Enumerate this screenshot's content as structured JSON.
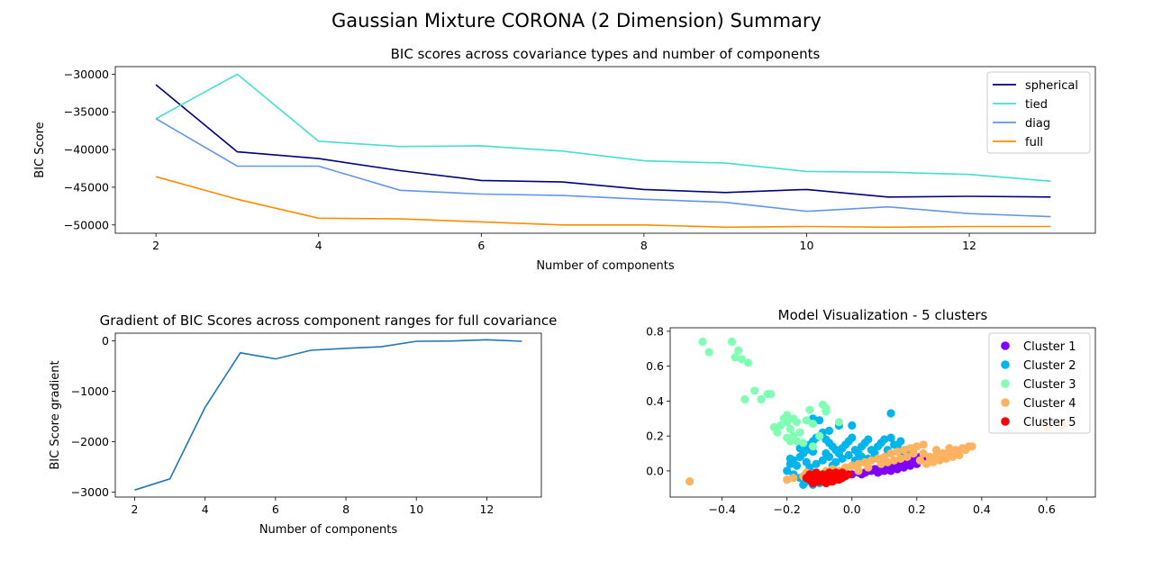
{
  "suptitle": "Gaussian Mixture CORONA (2 Dimension) Summary",
  "chart_data": [
    {
      "type": "line",
      "title": "BIC scores across covariance types and number of components",
      "xlabel": "Number of components",
      "ylabel": "BIC Score",
      "x": [
        2,
        3,
        4,
        5,
        6,
        7,
        8,
        9,
        10,
        11,
        12,
        13
      ],
      "xlim": [
        1.5,
        13.55
      ],
      "ylim": [
        -51100,
        -29000
      ],
      "xticks": [
        2,
        4,
        6,
        8,
        10,
        12
      ],
      "yticks": [
        -50000,
        -45000,
        -40000,
        -35000,
        -30000
      ],
      "legend_position": "upper right",
      "series": [
        {
          "name": "spherical",
          "color": "#000080",
          "values": [
            -31400,
            -40300,
            -41200,
            -42800,
            -44100,
            -44300,
            -45300,
            -45700,
            -45300,
            -46300,
            -46200,
            -46300
          ]
        },
        {
          "name": "tied",
          "color": "#40e0d0",
          "values": [
            -35900,
            -30000,
            -38900,
            -39600,
            -39500,
            -40200,
            -41500,
            -41800,
            -42900,
            -43000,
            -43300,
            -44200
          ]
        },
        {
          "name": "diag",
          "color": "#6495ed",
          "values": [
            -35900,
            -42200,
            -42200,
            -45400,
            -45900,
            -46100,
            -46600,
            -47000,
            -48200,
            -47600,
            -48500,
            -48900
          ]
        },
        {
          "name": "full",
          "color": "#ff8c00",
          "values": [
            -43600,
            -46600,
            -49100,
            -49200,
            -49600,
            -50000,
            -50000,
            -50300,
            -50200,
            -50300,
            -50200,
            -50200
          ]
        }
      ]
    },
    {
      "type": "line",
      "title": "Gradient of BIC Scores across component ranges for full covariance",
      "xlabel": "Number of components",
      "ylabel": "BIC Score gradient",
      "x": [
        2,
        3,
        4,
        5,
        6,
        7,
        8,
        9,
        10,
        11,
        12,
        13
      ],
      "xlim": [
        1.45,
        13.55
      ],
      "ylim": [
        -3100,
        150
      ],
      "xticks": [
        2,
        4,
        6,
        8,
        10,
        12
      ],
      "yticks": [
        -3000,
        -2000,
        -1000,
        0
      ],
      "series": [
        {
          "color": "#1f77b4",
          "values": [
            -2960,
            -2740,
            -1320,
            -240,
            -360,
            -190,
            -150,
            -120,
            -10,
            -5,
            20,
            -10
          ]
        }
      ]
    },
    {
      "type": "scatter",
      "title": "Model Visualization - 5 clusters",
      "xlim": [
        -0.56,
        0.75
      ],
      "ylim": [
        -0.15,
        0.82
      ],
      "xticks": [
        -0.4,
        -0.2,
        0.0,
        0.2,
        0.4,
        0.6
      ],
      "xtick_labels": [
        "−0.4",
        "−0.2",
        "0.0",
        "0.2",
        "0.4",
        "0.6"
      ],
      "yticks": [
        0.0,
        0.2,
        0.4,
        0.6,
        0.8
      ],
      "ytick_labels": [
        "0.0",
        "0.2",
        "0.4",
        "0.6",
        "0.8"
      ],
      "legend_position": "upper right",
      "series": [
        {
          "name": "Cluster 1",
          "color": "#8000ff",
          "points": [
            [
              -0.02,
              -0.02
            ],
            [
              0.0,
              -0.02
            ],
            [
              0.02,
              -0.01
            ],
            [
              0.04,
              -0.01
            ],
            [
              0.05,
              0.0
            ],
            [
              0.06,
              0.0
            ],
            [
              0.07,
              0.01
            ],
            [
              0.08,
              0.01
            ],
            [
              0.09,
              0.02
            ],
            [
              0.1,
              0.02
            ],
            [
              0.11,
              0.03
            ],
            [
              0.12,
              0.03
            ],
            [
              0.13,
              0.04
            ],
            [
              0.14,
              0.04
            ],
            [
              0.15,
              0.05
            ],
            [
              0.16,
              0.05
            ],
            [
              0.17,
              0.06
            ],
            [
              0.18,
              0.06
            ],
            [
              0.19,
              0.07
            ],
            [
              0.2,
              0.07
            ],
            [
              0.21,
              0.08
            ],
            [
              0.22,
              0.08
            ],
            [
              0.09,
              0.0
            ],
            [
              0.11,
              0.01
            ],
            [
              0.13,
              0.02
            ],
            [
              0.15,
              0.03
            ],
            [
              0.17,
              0.04
            ],
            [
              0.19,
              0.05
            ],
            [
              0.12,
              0.0
            ],
            [
              0.14,
              0.01
            ],
            [
              0.16,
              0.02
            ],
            [
              0.18,
              0.03
            ],
            [
              0.2,
              0.04
            ],
            [
              0.08,
              -0.01
            ],
            [
              0.1,
              0.0
            ],
            [
              0.13,
              0.05
            ],
            [
              0.17,
              0.07
            ],
            [
              0.03,
              -0.02
            ]
          ]
        },
        {
          "name": "Cluster 2",
          "color": "#00b4ec",
          "points": [
            [
              -0.19,
              0.07
            ],
            [
              -0.18,
              0.06
            ],
            [
              -0.16,
              0.08
            ],
            [
              -0.15,
              0.1
            ],
            [
              -0.14,
              0.12
            ],
            [
              -0.13,
              0.15
            ],
            [
              -0.12,
              0.17
            ],
            [
              -0.11,
              0.19
            ],
            [
              -0.1,
              0.2
            ],
            [
              -0.09,
              0.22
            ],
            [
              -0.08,
              0.18
            ],
            [
              -0.07,
              0.16
            ],
            [
              -0.06,
              0.14
            ],
            [
              -0.05,
              0.12
            ],
            [
              -0.04,
              0.1
            ],
            [
              -0.03,
              0.13
            ],
            [
              -0.02,
              0.15
            ],
            [
              -0.01,
              0.17
            ],
            [
              0.0,
              0.19
            ],
            [
              0.01,
              0.12
            ],
            [
              0.02,
              0.1
            ],
            [
              0.03,
              0.14
            ],
            [
              0.04,
              0.16
            ],
            [
              0.05,
              0.18
            ],
            [
              0.06,
              0.12
            ],
            [
              0.07,
              0.1
            ],
            [
              0.08,
              0.14
            ],
            [
              0.09,
              0.16
            ],
            [
              0.1,
              0.18
            ],
            [
              0.11,
              0.12
            ],
            [
              0.12,
              0.19
            ],
            [
              0.13,
              0.15
            ],
            [
              0.14,
              0.14
            ],
            [
              0.15,
              0.17
            ],
            [
              0.16,
              0.1
            ],
            [
              0.17,
              0.12
            ],
            [
              0.12,
              0.33
            ],
            [
              0.0,
              0.26
            ],
            [
              -0.04,
              0.26
            ],
            [
              -0.1,
              0.29
            ],
            [
              -0.12,
              0.3
            ],
            [
              -0.07,
              0.23
            ],
            [
              -0.2,
              0.0
            ],
            [
              -0.18,
              -0.02
            ],
            [
              -0.16,
              -0.04
            ],
            [
              -0.14,
              -0.06
            ],
            [
              -0.12,
              -0.08
            ],
            [
              -0.1,
              -0.07
            ],
            [
              -0.15,
              -0.08
            ],
            [
              -0.13,
              0.02
            ],
            [
              -0.11,
              0.04
            ],
            [
              -0.09,
              0.06
            ],
            [
              -0.07,
              0.08
            ],
            [
              -0.05,
              0.05
            ],
            [
              -0.03,
              0.07
            ],
            [
              -0.01,
              0.09
            ],
            [
              0.01,
              0.06
            ],
            [
              0.03,
              0.08
            ],
            [
              0.05,
              0.07
            ],
            [
              -0.17,
              0.03
            ],
            [
              -0.19,
              0.04
            ],
            [
              -0.14,
              0.05
            ],
            [
              -0.06,
              0.03
            ],
            [
              -0.16,
              0.13
            ],
            [
              0.08,
              0.07
            ],
            [
              0.1,
              0.06
            ],
            [
              0.0,
              0.03
            ],
            [
              -0.08,
              0.1
            ],
            [
              -0.12,
              0.11
            ]
          ]
        },
        {
          "name": "Cluster 3",
          "color": "#80ffb4",
          "points": [
            [
              -0.46,
              0.74
            ],
            [
              -0.37,
              0.74
            ],
            [
              -0.44,
              0.68
            ],
            [
              -0.35,
              0.69
            ],
            [
              -0.36,
              0.65
            ],
            [
              -0.34,
              0.64
            ],
            [
              -0.32,
              0.62
            ],
            [
              -0.3,
              0.46
            ],
            [
              -0.26,
              0.44
            ],
            [
              -0.25,
              0.44
            ],
            [
              -0.28,
              0.41
            ],
            [
              -0.33,
              0.41
            ],
            [
              -0.2,
              0.32
            ],
            [
              -0.21,
              0.3
            ],
            [
              -0.22,
              0.26
            ],
            [
              -0.24,
              0.25
            ],
            [
              -0.23,
              0.22
            ],
            [
              -0.2,
              0.28
            ],
            [
              -0.19,
              0.24
            ],
            [
              -0.18,
              0.3
            ],
            [
              -0.17,
              0.28
            ],
            [
              -0.16,
              0.22
            ],
            [
              -0.14,
              0.29
            ],
            [
              -0.13,
              0.35
            ],
            [
              -0.09,
              0.38
            ],
            [
              -0.08,
              0.36
            ],
            [
              -0.08,
              0.34
            ],
            [
              -0.12,
              0.27
            ],
            [
              -0.1,
              0.2
            ],
            [
              -0.18,
              0.2
            ],
            [
              -0.19,
              0.17
            ],
            [
              -0.15,
              0.16
            ],
            [
              -0.12,
              0.14
            ],
            [
              -0.2,
              0.19
            ],
            [
              -0.17,
              0.17
            ],
            [
              -0.04,
              0.28
            ]
          ]
        },
        {
          "name": "Cluster 4",
          "color": "#ffb360",
          "points": [
            [
              -0.5,
              -0.06
            ],
            [
              -0.2,
              -0.05
            ],
            [
              -0.18,
              -0.04
            ],
            [
              -0.15,
              -0.03
            ],
            [
              -0.12,
              -0.02
            ],
            [
              -0.1,
              -0.03
            ],
            [
              -0.08,
              0.0
            ],
            [
              -0.06,
              0.01
            ],
            [
              -0.04,
              0.0
            ],
            [
              -0.02,
              0.02
            ],
            [
              0.0,
              0.03
            ],
            [
              0.02,
              0.04
            ],
            [
              0.04,
              0.05
            ],
            [
              0.06,
              0.06
            ],
            [
              0.08,
              0.07
            ],
            [
              0.1,
              0.08
            ],
            [
              0.12,
              0.1
            ],
            [
              0.14,
              0.11
            ],
            [
              0.16,
              0.12
            ],
            [
              0.18,
              0.13
            ],
            [
              0.2,
              0.14
            ],
            [
              0.22,
              0.15
            ],
            [
              0.24,
              0.08
            ],
            [
              0.26,
              0.09
            ],
            [
              0.28,
              0.1
            ],
            [
              0.3,
              0.11
            ],
            [
              0.32,
              0.12
            ],
            [
              0.34,
              0.13
            ],
            [
              0.36,
              0.14
            ],
            [
              0.37,
              0.14
            ],
            [
              0.23,
              0.04
            ],
            [
              0.25,
              0.05
            ],
            [
              0.27,
              0.06
            ],
            [
              0.29,
              0.07
            ],
            [
              0.31,
              0.08
            ],
            [
              0.33,
              0.09
            ],
            [
              0.21,
              0.06
            ],
            [
              0.19,
              0.1
            ],
            [
              0.17,
              0.08
            ],
            [
              0.15,
              0.07
            ],
            [
              0.6,
              0.25
            ],
            [
              0.65,
              0.26
            ],
            [
              0.02,
              0.0
            ],
            [
              0.05,
              0.02
            ],
            [
              0.11,
              0.05
            ],
            [
              0.13,
              0.06
            ],
            [
              0.09,
              0.04
            ],
            [
              -0.14,
              -0.01
            ],
            [
              0.26,
              0.12
            ],
            [
              0.3,
              0.13
            ],
            [
              0.22,
              0.1
            ],
            [
              0.35,
              0.12
            ]
          ]
        },
        {
          "name": "Cluster 5",
          "color": "#ff0000",
          "points": [
            [
              -0.14,
              -0.04
            ],
            [
              -0.13,
              -0.05
            ],
            [
              -0.12,
              -0.03
            ],
            [
              -0.11,
              -0.06
            ],
            [
              -0.1,
              -0.04
            ],
            [
              -0.09,
              -0.05
            ],
            [
              -0.08,
              -0.03
            ],
            [
              -0.07,
              -0.06
            ],
            [
              -0.06,
              -0.04
            ],
            [
              -0.05,
              -0.05
            ],
            [
              -0.04,
              -0.02
            ],
            [
              -0.03,
              -0.04
            ],
            [
              -0.02,
              -0.03
            ],
            [
              -0.01,
              -0.02
            ],
            [
              -0.12,
              -0.07
            ],
            [
              -0.1,
              -0.06
            ],
            [
              -0.08,
              -0.07
            ],
            [
              -0.06,
              -0.06
            ],
            [
              -0.04,
              -0.05
            ],
            [
              -0.09,
              -0.02
            ],
            [
              -0.07,
              -0.01
            ],
            [
              -0.05,
              -0.01
            ],
            [
              -0.03,
              -0.01
            ],
            [
              -0.11,
              -0.01
            ],
            [
              -0.13,
              -0.02
            ]
          ]
        }
      ]
    }
  ]
}
